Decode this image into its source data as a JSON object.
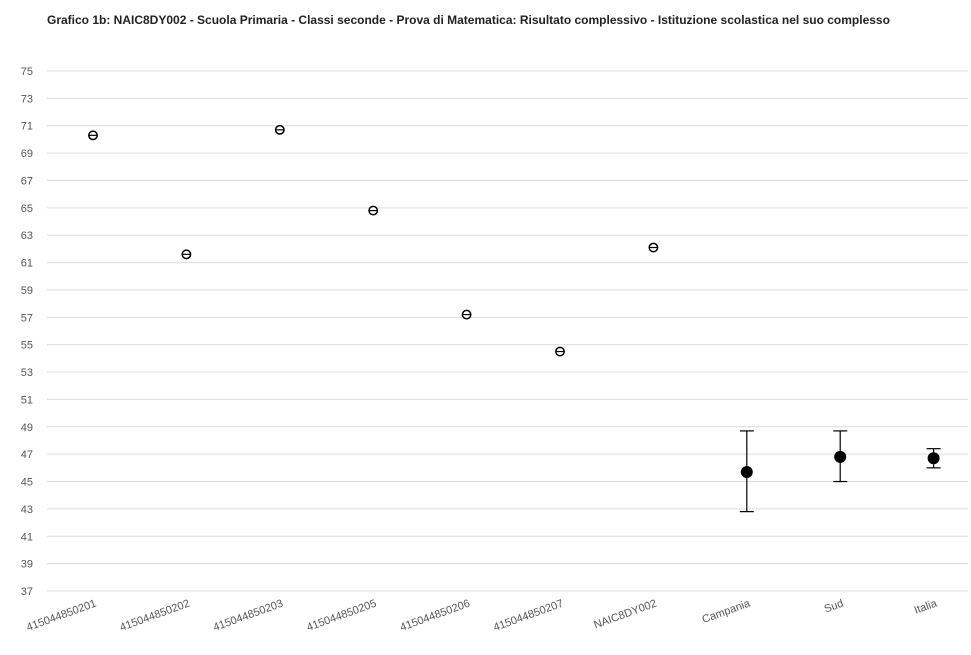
{
  "chart_data": {
    "type": "scatter",
    "title": "Grafico 1b: NAIC8DY002 - Scuola Primaria - Classi seconde - Prova di Matematica: Risultato complessivo - Istituzione scolastica nel suo complesso",
    "xlabel": "",
    "ylabel": "",
    "ylim": [
      37,
      75
    ],
    "yticks": [
      37,
      39,
      41,
      43,
      45,
      47,
      49,
      51,
      53,
      55,
      57,
      59,
      61,
      63,
      65,
      67,
      69,
      71,
      73,
      75
    ],
    "grid": true,
    "categories": [
      "415044850201",
      "415044850202",
      "415044850203",
      "415044850205",
      "415044850206",
      "415044850207",
      "NAIC8DY002",
      "Campania",
      "Sud",
      "Italia"
    ],
    "points": [
      {
        "category": "415044850201",
        "value": 70.3,
        "marker": "open-circle"
      },
      {
        "category": "415044850202",
        "value": 61.6,
        "marker": "open-circle"
      },
      {
        "category": "415044850203",
        "value": 70.7,
        "marker": "open-circle"
      },
      {
        "category": "415044850205",
        "value": 64.8,
        "marker": "open-circle"
      },
      {
        "category": "415044850206",
        "value": 57.2,
        "marker": "open-circle"
      },
      {
        "category": "415044850207",
        "value": 54.5,
        "marker": "open-circle"
      },
      {
        "category": "NAIC8DY002",
        "value": 62.1,
        "marker": "open-circle"
      },
      {
        "category": "Campania",
        "value": 45.7,
        "low": 42.8,
        "high": 48.7,
        "marker": "filled-circle"
      },
      {
        "category": "Sud",
        "value": 46.8,
        "low": 45.0,
        "high": 48.7,
        "marker": "filled-circle"
      },
      {
        "category": "Italia",
        "value": 46.7,
        "low": 46.0,
        "high": 47.4,
        "marker": "filled-circle"
      }
    ],
    "colors": {
      "marker": "#000000",
      "grid": "#dcdcdc",
      "axis_text": "#555555"
    }
  }
}
